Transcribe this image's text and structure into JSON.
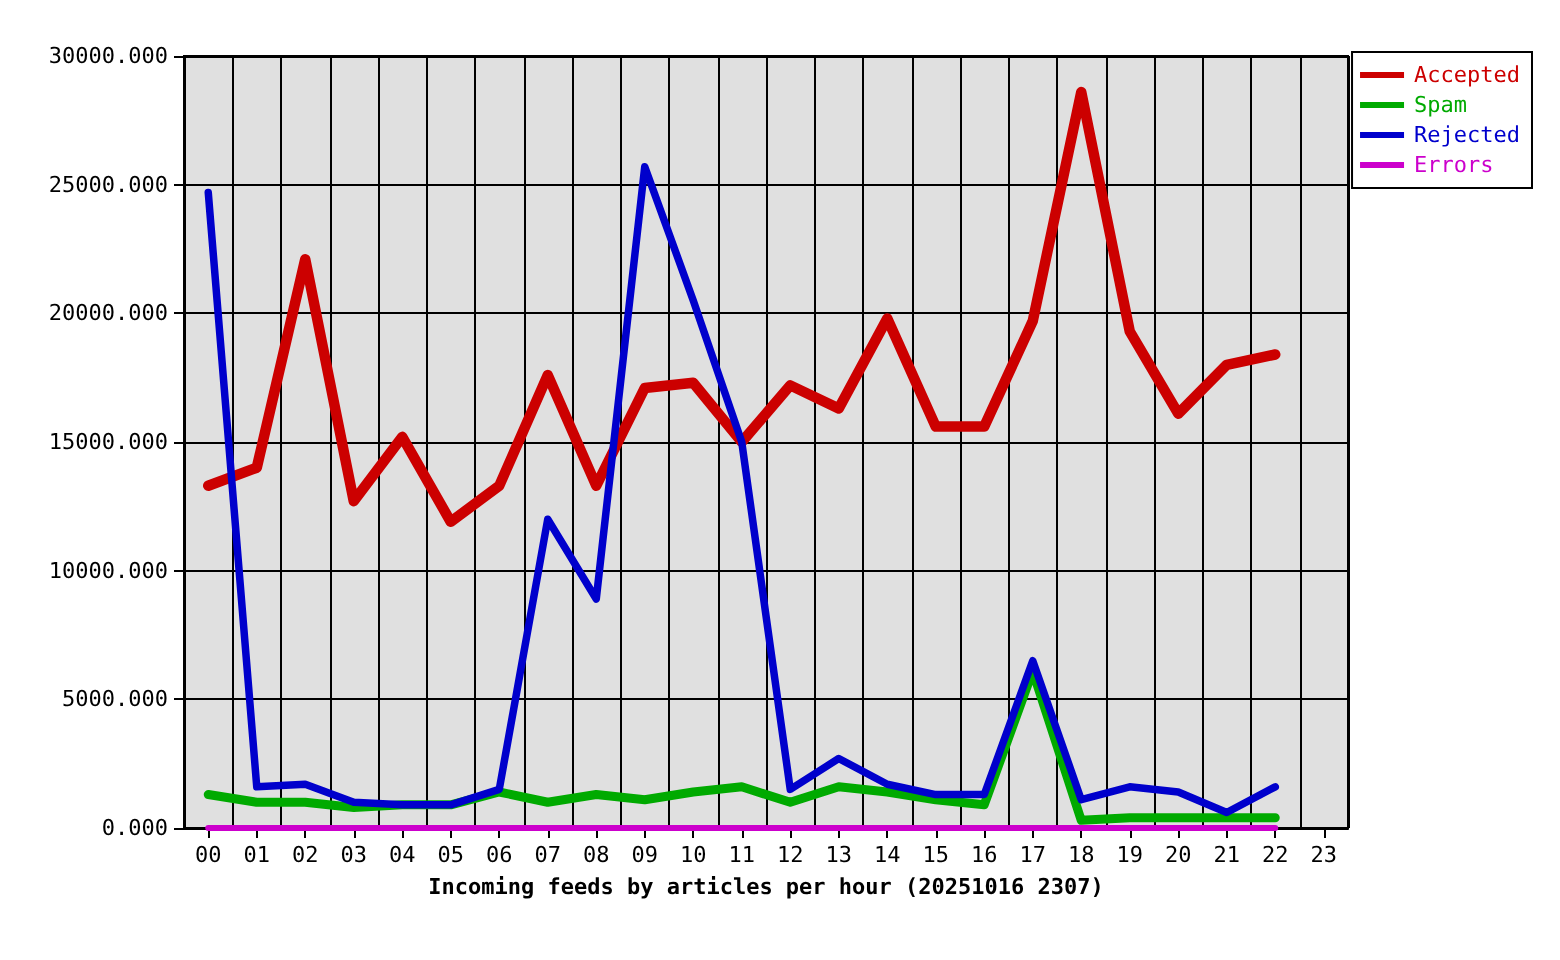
{
  "chart_data": {
    "type": "line",
    "xlabel": "Incoming feeds by articles per hour (20251016 2307)",
    "categories": [
      "00",
      "01",
      "02",
      "03",
      "04",
      "05",
      "06",
      "07",
      "08",
      "09",
      "10",
      "11",
      "12",
      "13",
      "14",
      "15",
      "16",
      "17",
      "18",
      "19",
      "20",
      "21",
      "22",
      "23"
    ],
    "series": [
      {
        "name": "Accepted",
        "color": "#cc0000",
        "values": [
          13300,
          14000,
          22100,
          12700,
          15200,
          11900,
          13300,
          17600,
          13300,
          17100,
          17300,
          15000,
          17200,
          16300,
          19800,
          15600,
          15600,
          19700,
          28600,
          19300,
          16100,
          18000,
          18400,
          null
        ]
      },
      {
        "name": "Spam",
        "color": "#00aa00",
        "values": [
          1300,
          1000,
          1000,
          800,
          900,
          900,
          1400,
          1000,
          1300,
          1100,
          1400,
          1600,
          1000,
          1600,
          1400,
          1100,
          900,
          6100,
          300,
          400,
          400,
          400,
          400,
          null
        ]
      },
      {
        "name": "Rejected",
        "color": "#0000cc",
        "values": [
          24700,
          1600,
          1700,
          1000,
          900,
          900,
          1500,
          12000,
          8900,
          25700,
          20500,
          15000,
          1500,
          2700,
          1700,
          1300,
          1300,
          6500,
          1100,
          1600,
          1400,
          600,
          1600,
          null
        ]
      },
      {
        "name": "Errors",
        "color": "#cc00cc",
        "values": [
          0,
          0,
          0,
          0,
          0,
          0,
          0,
          0,
          0,
          0,
          0,
          0,
          0,
          0,
          0,
          0,
          0,
          0,
          0,
          0,
          0,
          0,
          0,
          null
        ]
      }
    ],
    "ylim": [
      0,
      30000
    ],
    "yticks": [
      {
        "value": 0,
        "label": "0.000"
      },
      {
        "value": 5000,
        "label": "5000.000"
      },
      {
        "value": 10000,
        "label": "10000.000"
      },
      {
        "value": 15000,
        "label": "15000.000"
      },
      {
        "value": 20000,
        "label": "20000.000"
      },
      {
        "value": 25000,
        "label": "25000.000"
      },
      {
        "value": 30000,
        "label": "30000.000"
      }
    ],
    "grid": true,
    "legend": "top right",
    "marker": "none",
    "line_style": "solid"
  }
}
